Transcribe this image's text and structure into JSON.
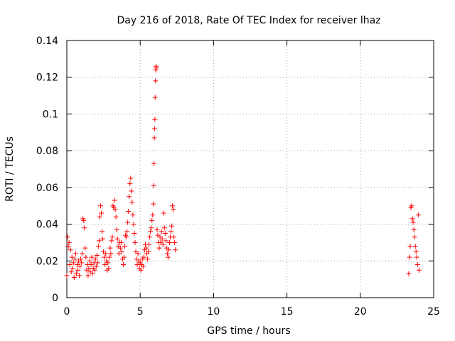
{
  "chart_data": {
    "type": "scatter",
    "title": "Day 216 of 2018, Rate Of TEC Index for receiver lhaz",
    "xlabel": "GPS time / hours",
    "ylabel": "ROTI / TECUs",
    "xlim": [
      0,
      25
    ],
    "ylim": [
      0,
      0.14
    ],
    "x_ticks": [
      0,
      5,
      10,
      15,
      20,
      25
    ],
    "x_tick_labels": [
      "0",
      "5",
      "10",
      "15",
      "20",
      "25"
    ],
    "y_ticks": [
      0,
      0.02,
      0.04,
      0.06,
      0.08,
      0.1,
      0.12,
      0.14
    ],
    "y_tick_labels": [
      "0",
      "0.02",
      "0.04",
      "0.06",
      "0.08",
      "0.1",
      "0.12",
      "0.14"
    ],
    "grid": true,
    "marker": "plus",
    "color": "#ff0000",
    "series": [
      {
        "points": [
          [
            0.0,
            0.012
          ],
          [
            0.05,
            0.033
          ],
          [
            0.1,
            0.028
          ],
          [
            0.15,
            0.03
          ],
          [
            0.2,
            0.018
          ],
          [
            0.25,
            0.026
          ],
          [
            0.3,
            0.014
          ],
          [
            0.35,
            0.022
          ],
          [
            0.4,
            0.016
          ],
          [
            0.45,
            0.019
          ],
          [
            0.5,
            0.011
          ],
          [
            0.55,
            0.021
          ],
          [
            0.6,
            0.024
          ],
          [
            0.65,
            0.013
          ],
          [
            0.7,
            0.018
          ],
          [
            0.75,
            0.015
          ],
          [
            0.8,
            0.02
          ],
          [
            0.85,
            0.012
          ],
          [
            0.9,
            0.017
          ],
          [
            0.95,
            0.021
          ],
          [
            1.0,
            0.019
          ],
          [
            1.05,
            0.024
          ],
          [
            1.1,
            0.043
          ],
          [
            1.15,
            0.042
          ],
          [
            1.2,
            0.038
          ],
          [
            1.25,
            0.027
          ],
          [
            1.3,
            0.022
          ],
          [
            1.35,
            0.015
          ],
          [
            1.4,
            0.018
          ],
          [
            1.45,
            0.012
          ],
          [
            1.5,
            0.016
          ],
          [
            1.55,
            0.02
          ],
          [
            1.6,
            0.014
          ],
          [
            1.65,
            0.018
          ],
          [
            1.7,
            0.022
          ],
          [
            1.75,
            0.013
          ],
          [
            1.8,
            0.016
          ],
          [
            1.85,
            0.019
          ],
          [
            1.9,
            0.015
          ],
          [
            1.95,
            0.021
          ],
          [
            2.0,
            0.017
          ],
          [
            2.05,
            0.023
          ],
          [
            2.1,
            0.019
          ],
          [
            2.15,
            0.028
          ],
          [
            2.2,
            0.031
          ],
          [
            2.25,
            0.044
          ],
          [
            2.3,
            0.05
          ],
          [
            2.35,
            0.046
          ],
          [
            2.4,
            0.036
          ],
          [
            2.45,
            0.032
          ],
          [
            2.5,
            0.025
          ],
          [
            2.55,
            0.022
          ],
          [
            2.6,
            0.018
          ],
          [
            2.65,
            0.024
          ],
          [
            2.7,
            0.02
          ],
          [
            2.75,
            0.015
          ],
          [
            2.8,
            0.019
          ],
          [
            2.85,
            0.016
          ],
          [
            2.9,
            0.022
          ],
          [
            2.95,
            0.027
          ],
          [
            3.0,
            0.024
          ],
          [
            3.05,
            0.031
          ],
          [
            3.1,
            0.033
          ],
          [
            3.15,
            0.05
          ],
          [
            3.2,
            0.049
          ],
          [
            3.25,
            0.053
          ],
          [
            3.3,
            0.048
          ],
          [
            3.35,
            0.044
          ],
          [
            3.4,
            0.037
          ],
          [
            3.45,
            0.032
          ],
          [
            3.5,
            0.028
          ],
          [
            3.55,
            0.024
          ],
          [
            3.6,
            0.03
          ],
          [
            3.65,
            0.027
          ],
          [
            3.7,
            0.03
          ],
          [
            3.75,
            0.025
          ],
          [
            3.8,
            0.021
          ],
          [
            3.85,
            0.018
          ],
          [
            3.9,
            0.022
          ],
          [
            3.95,
            0.028
          ],
          [
            4.0,
            0.034
          ],
          [
            4.05,
            0.033
          ],
          [
            4.1,
            0.036
          ],
          [
            4.15,
            0.041
          ],
          [
            4.2,
            0.047
          ],
          [
            4.25,
            0.055
          ],
          [
            4.3,
            0.062
          ],
          [
            4.35,
            0.065
          ],
          [
            4.4,
            0.058
          ],
          [
            4.45,
            0.052
          ],
          [
            4.5,
            0.045
          ],
          [
            4.55,
            0.04
          ],
          [
            4.6,
            0.035
          ],
          [
            4.65,
            0.03
          ],
          [
            4.7,
            0.025
          ],
          [
            4.75,
            0.021
          ],
          [
            4.8,
            0.018
          ],
          [
            4.85,
            0.024
          ],
          [
            4.9,
            0.02
          ],
          [
            4.95,
            0.016
          ],
          [
            5.0,
            0.019
          ],
          [
            5.05,
            0.015
          ],
          [
            5.1,
            0.018
          ],
          [
            5.15,
            0.021
          ],
          [
            5.2,
            0.017
          ],
          [
            5.25,
            0.022
          ],
          [
            5.3,
            0.026
          ],
          [
            5.35,
            0.029
          ],
          [
            5.4,
            0.027
          ],
          [
            5.45,
            0.024
          ],
          [
            5.5,
            0.021
          ],
          [
            5.55,
            0.025
          ],
          [
            5.6,
            0.029
          ],
          [
            5.65,
            0.033
          ],
          [
            5.7,
            0.036
          ],
          [
            5.75,
            0.038
          ],
          [
            5.8,
            0.042
          ],
          [
            5.85,
            0.045
          ],
          [
            5.9,
            0.051
          ],
          [
            5.92,
            0.061
          ],
          [
            5.94,
            0.073
          ],
          [
            5.96,
            0.087
          ],
          [
            5.98,
            0.092
          ],
          [
            6.0,
            0.097
          ],
          [
            6.02,
            0.109
          ],
          [
            6.04,
            0.118
          ],
          [
            6.06,
            0.124
          ],
          [
            6.08,
            0.126
          ],
          [
            6.1,
            0.125
          ],
          [
            6.15,
            0.037
          ],
          [
            6.2,
            0.034
          ],
          [
            6.25,
            0.03
          ],
          [
            6.3,
            0.027
          ],
          [
            6.35,
            0.033
          ],
          [
            6.4,
            0.03
          ],
          [
            6.45,
            0.036
          ],
          [
            6.5,
            0.032
          ],
          [
            6.55,
            0.029
          ],
          [
            6.6,
            0.046
          ],
          [
            6.65,
            0.038
          ],
          [
            6.7,
            0.035
          ],
          [
            6.75,
            0.031
          ],
          [
            6.8,
            0.027
          ],
          [
            6.85,
            0.024
          ],
          [
            6.9,
            0.022
          ],
          [
            6.95,
            0.026
          ],
          [
            7.0,
            0.03
          ],
          [
            7.05,
            0.033
          ],
          [
            7.1,
            0.036
          ],
          [
            7.15,
            0.039
          ],
          [
            7.2,
            0.05
          ],
          [
            7.25,
            0.048
          ],
          [
            7.3,
            0.033
          ],
          [
            7.35,
            0.03
          ],
          [
            7.4,
            0.026
          ],
          [
            23.3,
            0.013
          ],
          [
            23.35,
            0.022
          ],
          [
            23.4,
            0.028
          ],
          [
            23.45,
            0.049
          ],
          [
            23.5,
            0.05
          ],
          [
            23.55,
            0.043
          ],
          [
            23.6,
            0.041
          ],
          [
            23.65,
            0.037
          ],
          [
            23.7,
            0.033
          ],
          [
            23.75,
            0.028
          ],
          [
            23.8,
            0.025
          ],
          [
            23.85,
            0.022
          ],
          [
            23.9,
            0.018
          ],
          [
            23.95,
            0.045
          ],
          [
            24.0,
            0.015
          ]
        ]
      }
    ]
  }
}
